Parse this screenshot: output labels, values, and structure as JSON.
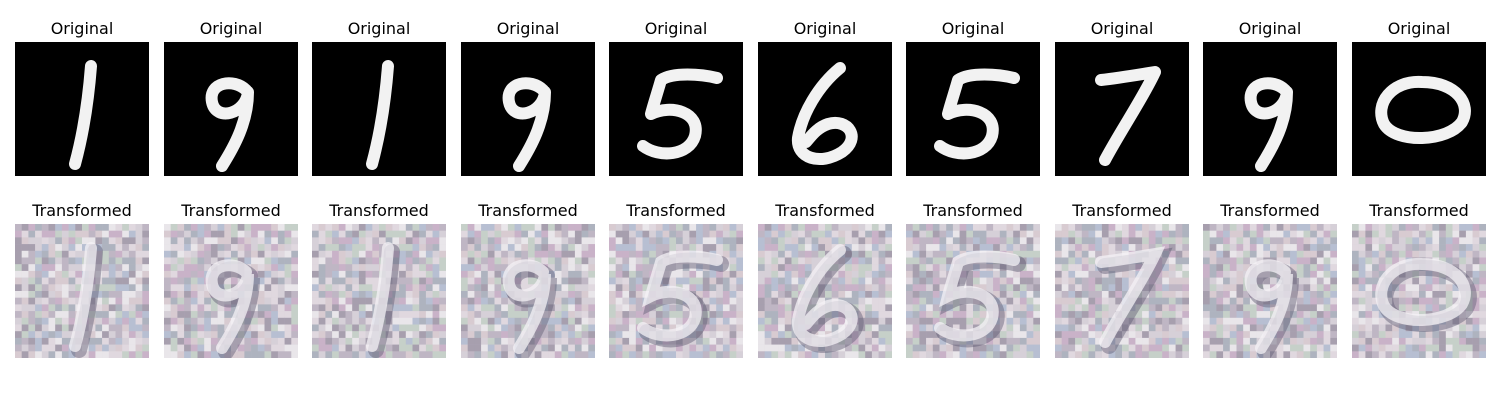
{
  "figure": {
    "row_titles": {
      "original": "Original",
      "transformed": "Transformed"
    },
    "panels": [
      {
        "digit": "1",
        "original_title": "Original",
        "transformed_title": "Transformed"
      },
      {
        "digit": "9",
        "original_title": "Original",
        "transformed_title": "Transformed"
      },
      {
        "digit": "1",
        "original_title": "Original",
        "transformed_title": "Transformed"
      },
      {
        "digit": "9",
        "original_title": "Original",
        "transformed_title": "Transformed"
      },
      {
        "digit": "5",
        "original_title": "Original",
        "transformed_title": "Transformed"
      },
      {
        "digit": "6",
        "original_title": "Original",
        "transformed_title": "Transformed"
      },
      {
        "digit": "5",
        "original_title": "Original",
        "transformed_title": "Transformed"
      },
      {
        "digit": "7",
        "original_title": "Original",
        "transformed_title": "Transformed"
      },
      {
        "digit": "9",
        "original_title": "Original",
        "transformed_title": "Transformed"
      },
      {
        "digit": "0",
        "original_title": "Original",
        "transformed_title": "Transformed"
      }
    ]
  },
  "colors": {
    "original_background": "#000000",
    "original_stroke": "#ffffff",
    "transformed_background": "#cbc8cd",
    "text": "#000000"
  }
}
